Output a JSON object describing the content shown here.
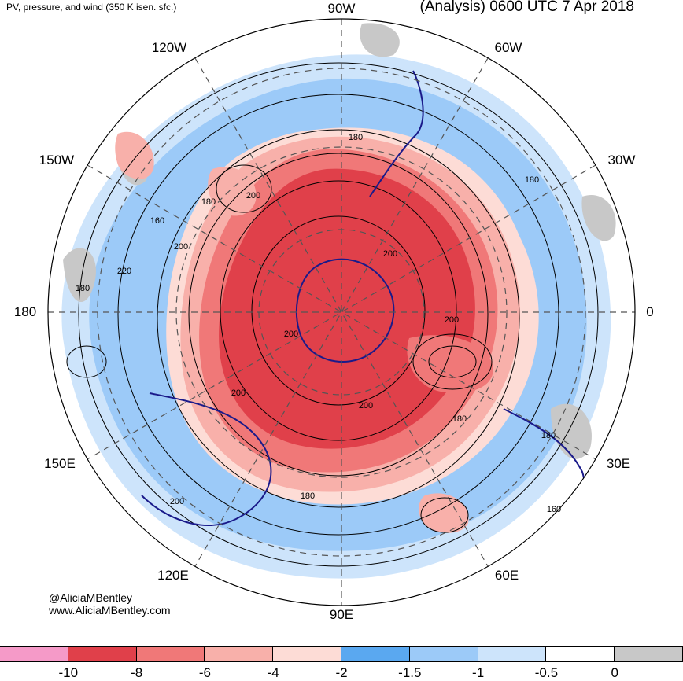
{
  "title": "PV, pressure, and wind (350 K isen. sfc.)",
  "subtitle": "(Analysis) 0600 UTC 7 Apr 2018",
  "longitude_labels": [
    "90W",
    "60W",
    "30W",
    "0",
    "30E",
    "60E",
    "90E",
    "120E",
    "150E",
    "180",
    "150W",
    "120W"
  ],
  "contour_labels": [
    "180",
    "200",
    "180",
    "160",
    "200",
    "220",
    "180",
    "200",
    "200",
    "200",
    "200",
    "200",
    "180",
    "180",
    "180",
    "200",
    "160",
    "180"
  ],
  "credit": {
    "handle": "@AliciaMBentley",
    "website": "www.AliciaMBentley.com"
  },
  "colorbar": {
    "colors": [
      "#f59ac8",
      "#e0404a",
      "#f07878",
      "#f8b0aa",
      "#fddcd6",
      "#5aa8f0",
      "#9ccaf8",
      "#cde4fb",
      "#ffffff",
      "#c8c8c8"
    ],
    "tick_labels": [
      "-10",
      "-8",
      "-6",
      "-4",
      "-2",
      "-1.5",
      "-1",
      "-0.5",
      "0"
    ]
  },
  "palette": {
    "pv_strong": "#e0404a",
    "pv_medium": "#f07878",
    "pv_weak": "#f8b0aa",
    "pv_faint": "#fddcd6",
    "blue_strong": "#5aa8f0",
    "blue_medium": "#9ccaf8",
    "blue_light": "#cde4fb",
    "grey": "#c8c8c8",
    "coast": "#1a1a8a"
  }
}
